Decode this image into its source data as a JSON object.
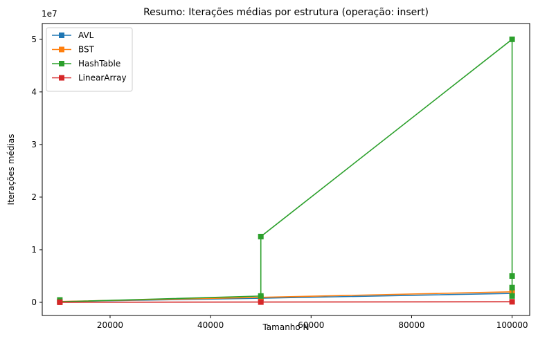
{
  "chart_data": {
    "type": "line",
    "title": "Resumo: Iterações médias por estrutura (operação: insert)",
    "xlabel": "Tamanho N",
    "ylabel": "Iterações médias",
    "y_offset_label": "1e7",
    "xlim": [
      6500,
      103500
    ],
    "ylim": [
      -2500000,
      53000000
    ],
    "x_ticks": [
      20000,
      40000,
      60000,
      80000,
      100000
    ],
    "x_tick_labels": [
      "20000",
      "40000",
      "60000",
      "80000",
      "100000"
    ],
    "y_ticks": [
      0,
      10000000,
      20000000,
      30000000,
      40000000,
      50000000
    ],
    "y_tick_labels": [
      "0",
      "1",
      "2",
      "3",
      "4",
      "5"
    ],
    "grid": false,
    "legend_position": "upper-left",
    "series": [
      {
        "name": "AVL",
        "color": "#1f77b4",
        "x": [
          10000,
          50000,
          100000
        ],
        "y": [
          140000,
          780000,
          1700000
        ]
      },
      {
        "name": "BST",
        "color": "#ff7f0e",
        "x": [
          10000,
          50000,
          100000
        ],
        "y": [
          160000,
          950000,
          2000000
        ]
      },
      {
        "name": "HashTable",
        "color": "#2ca02c",
        "x": [
          10000,
          10000,
          50000,
          50000,
          100000,
          100000,
          100000,
          100000
        ],
        "y": [
          450000,
          100000,
          1200000,
          12500000,
          50000000,
          5000000,
          2800000,
          1200000
        ]
      },
      {
        "name": "LinearArray",
        "color": "#d62728",
        "x": [
          10000,
          50000,
          100000
        ],
        "y": [
          10000,
          50000,
          100000
        ]
      }
    ]
  }
}
